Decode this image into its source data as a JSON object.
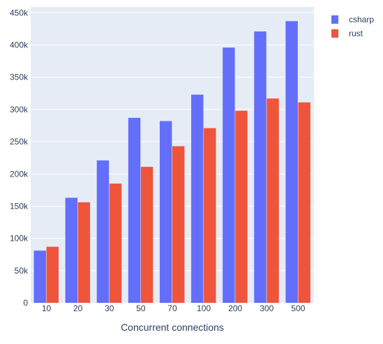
{
  "chart_data": {
    "type": "bar",
    "categories": [
      "10",
      "20",
      "30",
      "50",
      "70",
      "100",
      "200",
      "300",
      "500"
    ],
    "series": [
      {
        "name": "csharp",
        "color": "#636efa",
        "values": [
          81000,
          163000,
          221000,
          287000,
          282000,
          323000,
          396000,
          421000,
          437000
        ]
      },
      {
        "name": "rust",
        "color": "#ef553b",
        "values": [
          87000,
          156000,
          185000,
          211000,
          243000,
          271000,
          298000,
          317000,
          311000
        ]
      }
    ],
    "xlabel": "Concurrent connections",
    "ylabel": "",
    "ylim": [
      0,
      459000
    ],
    "yticks": [
      0,
      50000,
      100000,
      150000,
      200000,
      250000,
      300000,
      350000,
      400000,
      450000
    ],
    "ytick_labels": [
      "0",
      "50k",
      "100k",
      "150k",
      "200k",
      "250k",
      "300k",
      "350k",
      "400k",
      "450k"
    ],
    "grid": true,
    "legend_position": "top-right",
    "plot_background": "#e5ecf6"
  }
}
